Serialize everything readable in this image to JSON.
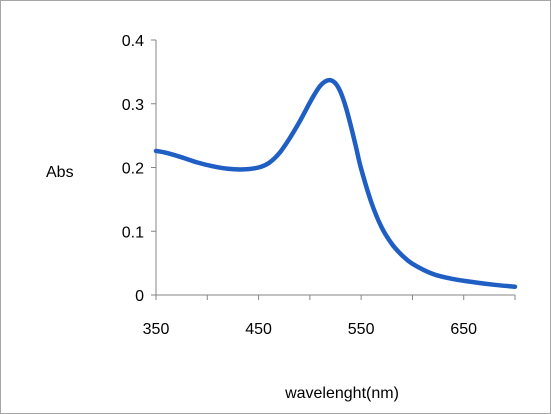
{
  "chart_data": {
    "type": "line",
    "title": "",
    "xlabel": "wavelenght(nm)",
    "ylabel": "Abs",
    "xlim": [
      350,
      700
    ],
    "ylim": [
      0,
      0.4
    ],
    "x_ticks": [
      "350",
      "450",
      "550",
      "650"
    ],
    "y_ticks": [
      "0",
      "0.1",
      "0.2",
      "0.3",
      "0.4"
    ],
    "grid": false,
    "legend": "none",
    "series": [
      {
        "color": "#1f5fc4",
        "x": [
          350,
          360,
          375,
          390,
          405,
          420,
          435,
          450,
          460,
          470,
          480,
          490,
          500,
          505,
          510,
          515,
          520,
          525,
          530,
          535,
          540,
          545,
          550,
          560,
          570,
          580,
          590,
          600,
          620,
          640,
          660,
          680,
          700
        ],
        "y": [
          0.226,
          0.223,
          0.216,
          0.208,
          0.202,
          0.198,
          0.197,
          0.2,
          0.207,
          0.222,
          0.245,
          0.272,
          0.302,
          0.316,
          0.328,
          0.335,
          0.337,
          0.332,
          0.318,
          0.295,
          0.265,
          0.232,
          0.198,
          0.145,
          0.106,
          0.08,
          0.062,
          0.049,
          0.033,
          0.025,
          0.02,
          0.016,
          0.013
        ]
      }
    ]
  }
}
